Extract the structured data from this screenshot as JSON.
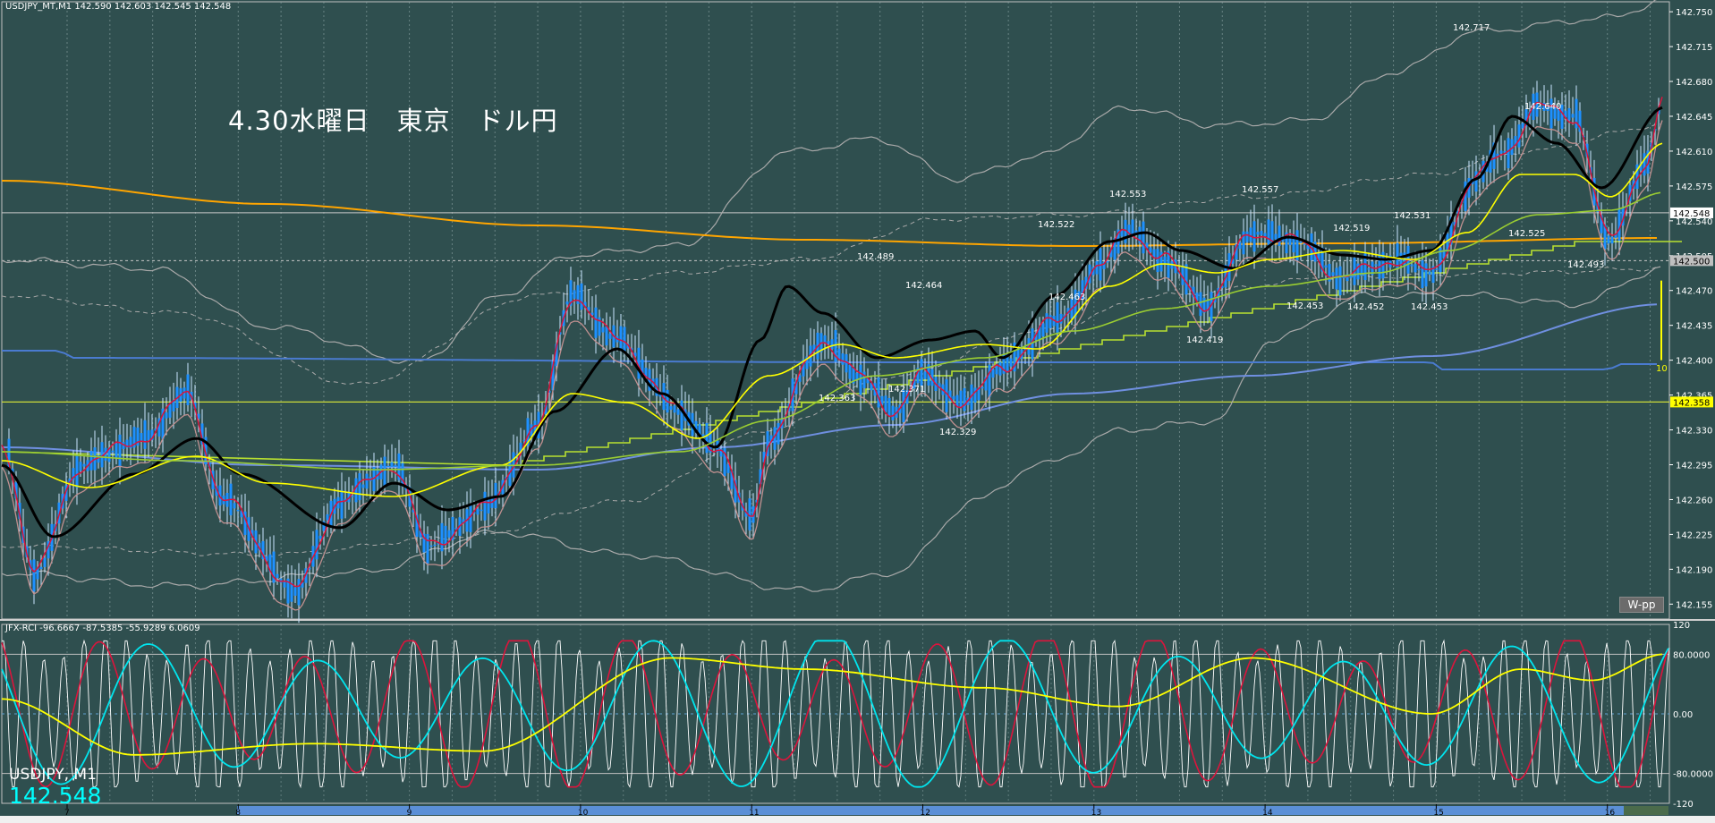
{
  "header": {
    "symbol_info": "USDJPY_MT,M1  142.590 142.603 142.545 142.548",
    "rci_info": "JFX-RCI -96.6667 -87.5385 -55.9289 6.0609"
  },
  "title": "4.30水曜日　東京　ドル円",
  "symbol_label": "USDJPY, M1",
  "current_price": "142.548",
  "wpp_button": "W-pp",
  "price_scale": [
    "142.750",
    "142.715",
    "142.680",
    "142.645",
    "142.610",
    "142.575",
    "142.540",
    "142.505",
    "142.470",
    "142.435",
    "142.400",
    "142.365",
    "142.330",
    "142.295",
    "142.260",
    "142.225",
    "142.190",
    "142.155"
  ],
  "price_tags": {
    "current": "142.548",
    "upper_level": "142.500",
    "lower_level": "142.358",
    "ten_label": "10"
  },
  "rci_scale": [
    "120",
    "80.0000",
    "0.00",
    "-80.0000",
    "-120"
  ],
  "time_labels": [
    "7",
    "8",
    "9",
    "10",
    "11",
    "12",
    "13",
    "14",
    "15",
    "16"
  ],
  "colors": {
    "background": "#2f4f4f",
    "candle": "#1e90ff",
    "ma_fast": "#dc143c",
    "ma_black": "#000000",
    "ma_yellow": "#ffff00",
    "ma_green": "#9acd32",
    "ma_orange": "#ffa500",
    "ma_blue": "#4a7bd0",
    "bollinger": "#a9a9a9",
    "rci_white": "#ffffff",
    "rci_red": "#dc143c",
    "rci_cyan": "#00e5ee",
    "rci_yellow": "#ffff00"
  },
  "chart_data": {
    "type": "line",
    "title": "4.30水曜日　東京　ドル円",
    "symbol": "USDJPY_MT, M1",
    "ohlc_last": {
      "open": 142.59,
      "high": 142.603,
      "low": 142.545,
      "close": 142.548
    },
    "ylim": [
      142.14,
      142.76
    ],
    "hour_markers": [
      "7",
      "8",
      "9",
      "10",
      "11",
      "12",
      "13",
      "14",
      "15",
      "16"
    ],
    "swing_points": [
      {
        "x": 9.75,
        "y": 142.363,
        "label": "142.363"
      },
      {
        "x": 10.0,
        "y": 142.489,
        "label": "142.489"
      },
      {
        "x": 10.3,
        "y": 142.464,
        "label": "142.464"
      },
      {
        "x": 10.2,
        "y": 142.371,
        "label": "142.371"
      },
      {
        "x": 10.6,
        "y": 142.329,
        "label": "142.329"
      },
      {
        "x": 11.3,
        "y": 142.522,
        "label": "142.522"
      },
      {
        "x": 11.4,
        "y": 142.463,
        "label": "142.463"
      },
      {
        "x": 11.5,
        "y": 142.553,
        "label": "142.553"
      },
      {
        "x": 12.0,
        "y": 142.419,
        "label": "142.419"
      },
      {
        "x": 12.3,
        "y": 142.557,
        "label": "142.557"
      },
      {
        "x": 12.5,
        "y": 142.453,
        "label": "142.453"
      },
      {
        "x": 12.8,
        "y": 142.519,
        "label": "142.519"
      },
      {
        "x": 12.9,
        "y": 142.452,
        "label": "142.452"
      },
      {
        "x": 13.2,
        "y": 142.531,
        "label": "142.531"
      },
      {
        "x": 13.3,
        "y": 142.453,
        "label": "142.453"
      },
      {
        "x": 13.5,
        "y": 142.717,
        "label": "142.717"
      },
      {
        "x": 14.0,
        "y": 142.64,
        "label": "142.640"
      },
      {
        "x": 14.0,
        "y": 142.525,
        "label": "142.525"
      },
      {
        "x": 14.5,
        "y": 142.493,
        "label": "142.493"
      }
    ],
    "levels": [
      {
        "name": "W-pp",
        "value": 142.5
      },
      {
        "name": "current",
        "value": 142.548
      },
      {
        "name": "support",
        "value": 142.358
      }
    ],
    "rci_ylim": [
      -120,
      120
    ],
    "rci_levels": [
      80,
      0,
      -80
    ],
    "rci_values": [
      -96.6667,
      -87.5385,
      -55.9289,
      6.0609
    ]
  }
}
